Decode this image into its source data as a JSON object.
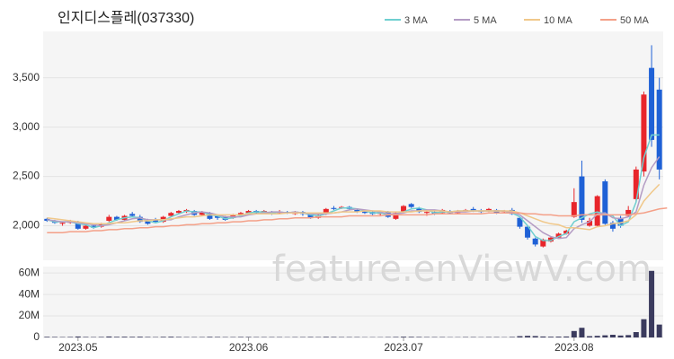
{
  "chart_data": [
    {
      "type": "candlestick",
      "title": "인지디스플레(037330)",
      "watermark": "feature.enViewV.com",
      "up_color": "#e8262b",
      "down_color": "#1f61d6",
      "grid": true,
      "ylim": [
        1650,
        3970
      ],
      "yticks": [
        {
          "value": 2000,
          "label": "2,000"
        },
        {
          "value": 2500,
          "label": "2,500"
        },
        {
          "value": 3000,
          "label": "3,000"
        },
        {
          "value": 3500,
          "label": "3,500"
        }
      ],
      "open": [
        2070,
        2050,
        2020,
        2030,
        2040,
        1970,
        2000,
        1990,
        2050,
        2090,
        2060,
        2120,
        2090,
        2050,
        2060,
        2040,
        2100,
        2130,
        2140,
        2150,
        2110,
        2130,
        2100,
        2090,
        2080,
        2110,
        2130,
        2150,
        2130,
        2140,
        2130,
        2140,
        2120,
        2140,
        2120,
        2080,
        2120,
        2180,
        2180,
        2190,
        2160,
        2150,
        2140,
        2120,
        2140,
        2070,
        2140,
        2220,
        2180,
        2130,
        2140,
        2130,
        2150,
        2130,
        2150,
        2170,
        2150,
        2150,
        2160,
        2140,
        2160,
        2080,
        1990,
        1870,
        1790,
        1840,
        1880,
        1920,
        2090,
        2500,
        2000,
        2000,
        2450,
        2030,
        2080,
        2100,
        2270,
        2550,
        3600,
        3380
      ],
      "high": [
        2080,
        2060,
        2040,
        2060,
        2050,
        2010,
        2010,
        2030,
        2110,
        2100,
        2110,
        2140,
        2110,
        2070,
        2080,
        2100,
        2140,
        2160,
        2170,
        2160,
        2150,
        2140,
        2110,
        2100,
        2120,
        2140,
        2160,
        2160,
        2160,
        2150,
        2160,
        2150,
        2150,
        2150,
        2130,
        2120,
        2180,
        2200,
        2200,
        2200,
        2170,
        2160,
        2150,
        2140,
        2150,
        2140,
        2210,
        2230,
        2190,
        2150,
        2160,
        2170,
        2160,
        2160,
        2170,
        2190,
        2170,
        2180,
        2170,
        2160,
        2180,
        2090,
        2000,
        1880,
        1870,
        1890,
        1930,
        1960,
        2380,
        2660,
        2080,
        2310,
        2470,
        2050,
        2100,
        2200,
        2600,
        3360,
        3830,
        3500
      ],
      "low": [
        2040,
        2020,
        2000,
        2020,
        1960,
        1960,
        1970,
        1980,
        2040,
        2050,
        2050,
        2090,
        2030,
        2010,
        2030,
        2030,
        2090,
        2120,
        2130,
        2100,
        2100,
        2060,
        2060,
        2050,
        2070,
        2100,
        2120,
        2120,
        2120,
        2110,
        2120,
        2120,
        2110,
        2100,
        2070,
        2070,
        2110,
        2160,
        2170,
        2160,
        2130,
        2120,
        2110,
        2100,
        2080,
        2060,
        2130,
        2180,
        2130,
        2100,
        2110,
        2120,
        2120,
        2120,
        2140,
        2140,
        2130,
        2140,
        2120,
        2130,
        2110,
        1970,
        1860,
        1790,
        1780,
        1830,
        1870,
        1910,
        2080,
        2030,
        1990,
        1990,
        2010,
        1940,
        1980,
        2090,
        2240,
        2500,
        2800,
        2470
      ],
      "close": [
        2050,
        2030,
        2030,
        2050,
        1970,
        2000,
        1980,
        2020,
        2090,
        2060,
        2100,
        2100,
        2040,
        2020,
        2040,
        2090,
        2130,
        2150,
        2160,
        2110,
        2140,
        2070,
        2080,
        2060,
        2110,
        2130,
        2150,
        2130,
        2150,
        2120,
        2140,
        2130,
        2140,
        2120,
        2080,
        2110,
        2170,
        2170,
        2190,
        2170,
        2140,
        2130,
        2120,
        2130,
        2090,
        2130,
        2200,
        2190,
        2140,
        2140,
        2120,
        2160,
        2130,
        2150,
        2160,
        2150,
        2140,
        2170,
        2130,
        2150,
        2120,
        1990,
        1880,
        1810,
        1860,
        1880,
        1920,
        1950,
        2240,
        2060,
        2050,
        2300,
        2020,
        1970,
        2000,
        2160,
        2570,
        3330,
        2870,
        2570
      ],
      "series": [
        {
          "name": "3 MA",
          "color": "#6fcfd0",
          "values": [
            2060,
            2040,
            2040,
            2040,
            2020,
            2010,
            1980,
            2000,
            2030,
            2060,
            2080,
            2090,
            2080,
            2050,
            2030,
            2050,
            2090,
            2120,
            2150,
            2140,
            2140,
            2110,
            2100,
            2070,
            2080,
            2100,
            2130,
            2140,
            2140,
            2130,
            2140,
            2130,
            2140,
            2130,
            2110,
            2100,
            2120,
            2150,
            2180,
            2180,
            2170,
            2150,
            2130,
            2130,
            2110,
            2120,
            2140,
            2170,
            2180,
            2160,
            2130,
            2140,
            2140,
            2150,
            2150,
            2150,
            2150,
            2150,
            2150,
            2150,
            2130,
            2090,
            2000,
            1890,
            1850,
            1850,
            1890,
            1920,
            2040,
            2080,
            2120,
            2140,
            2120,
            2100,
            2000,
            2040,
            2240,
            2690,
            2920,
            2920
          ]
        },
        {
          "name": "5 MA",
          "color": "#b49cc4",
          "values": [
            2060,
            2050,
            2040,
            2040,
            2030,
            2020,
            2010,
            2000,
            2010,
            2030,
            2050,
            2070,
            2080,
            2060,
            2060,
            2060,
            2060,
            2090,
            2110,
            2130,
            2140,
            2130,
            2110,
            2090,
            2090,
            2090,
            2110,
            2120,
            2130,
            2140,
            2140,
            2130,
            2140,
            2130,
            2120,
            2120,
            2120,
            2130,
            2140,
            2160,
            2170,
            2160,
            2150,
            2140,
            2120,
            2120,
            2130,
            2150,
            2150,
            2160,
            2160,
            2150,
            2140,
            2140,
            2140,
            2150,
            2150,
            2150,
            2150,
            2150,
            2140,
            2110,
            2050,
            1990,
            1930,
            1890,
            1870,
            1880,
            1970,
            2010,
            2040,
            2120,
            2130,
            2080,
            2070,
            2090,
            2140,
            2410,
            2590,
            2700
          ]
        },
        {
          "name": "10 MA",
          "color": "#f0c88a",
          "values": [
            2080,
            2070,
            2060,
            2050,
            2040,
            2030,
            2020,
            2020,
            2020,
            2030,
            2030,
            2040,
            2050,
            2050,
            2060,
            2060,
            2070,
            2080,
            2090,
            2090,
            2100,
            2110,
            2110,
            2110,
            2110,
            2110,
            2120,
            2120,
            2120,
            2120,
            2120,
            2130,
            2130,
            2130,
            2130,
            2130,
            2130,
            2130,
            2140,
            2140,
            2140,
            2150,
            2150,
            2150,
            2140,
            2140,
            2140,
            2140,
            2150,
            2150,
            2150,
            2150,
            2140,
            2150,
            2150,
            2150,
            2150,
            2150,
            2150,
            2150,
            2150,
            2130,
            2100,
            2070,
            2040,
            2020,
            2010,
            1980,
            1980,
            1970,
            1960,
            1990,
            2000,
            2020,
            2030,
            2050,
            2110,
            2250,
            2340,
            2420
          ]
        },
        {
          "name": "50 MA",
          "color": "#f4a088",
          "values": [
            1930,
            1930,
            1930,
            1940,
            1940,
            1940,
            1950,
            1950,
            1960,
            1960,
            1970,
            1970,
            1980,
            1980,
            1990,
            1990,
            2000,
            2000,
            2010,
            2010,
            2020,
            2020,
            2030,
            2030,
            2040,
            2040,
            2050,
            2050,
            2060,
            2060,
            2070,
            2070,
            2080,
            2080,
            2080,
            2090,
            2090,
            2090,
            2090,
            2100,
            2100,
            2100,
            2100,
            2100,
            2110,
            2110,
            2110,
            2110,
            2110,
            2110,
            2120,
            2120,
            2120,
            2120,
            2120,
            2120,
            2120,
            2130,
            2130,
            2130,
            2130,
            2130,
            2120,
            2120,
            2110,
            2110,
            2100,
            2100,
            2100,
            2110,
            2110,
            2110,
            2110,
            2110,
            2110,
            2110,
            2120,
            2130,
            2150,
            2170,
            2180
          ]
        }
      ]
    },
    {
      "type": "bar",
      "color": "#3b3b5e",
      "grid": true,
      "categories": [
        null,
        null,
        null,
        null,
        "2023.05",
        null,
        null,
        null,
        null,
        null,
        null,
        null,
        null,
        null,
        null,
        null,
        null,
        null,
        null,
        null,
        null,
        null,
        null,
        null,
        null,
        null,
        "2023.06",
        null,
        null,
        null,
        null,
        null,
        null,
        null,
        null,
        null,
        null,
        null,
        null,
        null,
        null,
        null,
        null,
        null,
        null,
        null,
        "2023.07",
        null,
        null,
        null,
        null,
        null,
        null,
        null,
        null,
        null,
        null,
        null,
        null,
        null,
        null,
        null,
        null,
        null,
        null,
        null,
        null,
        null,
        "2023.08",
        null,
        null,
        null,
        null,
        null,
        null,
        null,
        null,
        null,
        null,
        null
      ],
      "ylim": [
        0,
        66000000
      ],
      "yticks": [
        0,
        {
          "value": 20000000,
          "label": "20M"
        },
        {
          "value": 40000000,
          "label": "40M"
        },
        {
          "value": 60000000,
          "label": "60M"
        }
      ],
      "values": [
        600000,
        500000,
        400000,
        500000,
        900000,
        500000,
        400000,
        500000,
        900000,
        600000,
        700000,
        600000,
        700000,
        500000,
        400000,
        600000,
        700000,
        500000,
        400000,
        400000,
        400000,
        600000,
        500000,
        400000,
        400000,
        500000,
        500000,
        400000,
        400000,
        400000,
        400000,
        300000,
        400000,
        400000,
        500000,
        400000,
        600000,
        500000,
        400000,
        400000,
        400000,
        300000,
        300000,
        300000,
        400000,
        500000,
        700000,
        600000,
        500000,
        400000,
        400000,
        400000,
        300000,
        300000,
        400000,
        400000,
        300000,
        400000,
        400000,
        300000,
        500000,
        1200000,
        1500000,
        1300000,
        900000,
        700000,
        800000,
        900000,
        6000000,
        9000000,
        1200000,
        1500000,
        2000000,
        2500000,
        1800000,
        2200000,
        5000000,
        17000000,
        62000000,
        12000000
      ]
    }
  ]
}
